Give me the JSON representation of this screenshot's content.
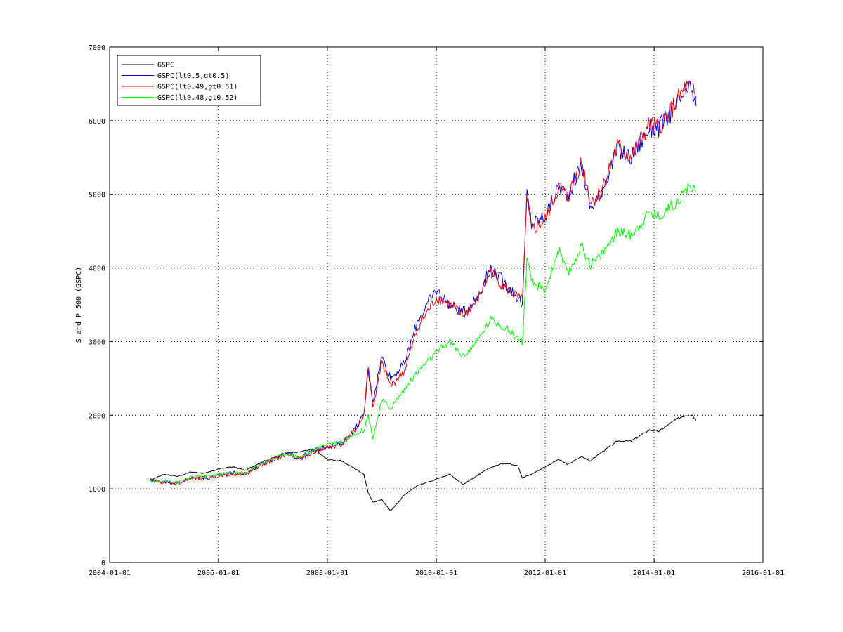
{
  "chart_data": {
    "type": "line",
    "title": "",
    "xlabel": "",
    "ylabel": "S and P 500 (GSPC)",
    "xlim": [
      "2004-01-01",
      "2016-01-01"
    ],
    "ylim": [
      0,
      7000
    ],
    "x_ticks": [
      "2004-01-01",
      "2006-01-01",
      "2008-01-01",
      "2010-01-01",
      "2012-01-01",
      "2014-01-01",
      "2016-01-01"
    ],
    "y_ticks": [
      0,
      1000,
      2000,
      3000,
      4000,
      5000,
      6000,
      7000
    ],
    "grid": true,
    "legend_position": "top-left",
    "series": [
      {
        "name": "GSPC",
        "color": "#000000",
        "points": [
          [
            "2004-10-01",
            1120
          ],
          [
            "2005-01-01",
            1200
          ],
          [
            "2005-04-01",
            1170
          ],
          [
            "2005-07-01",
            1230
          ],
          [
            "2005-10-01",
            1210
          ],
          [
            "2006-01-01",
            1270
          ],
          [
            "2006-04-01",
            1300
          ],
          [
            "2006-07-01",
            1250
          ],
          [
            "2006-10-01",
            1350
          ],
          [
            "2007-01-01",
            1420
          ],
          [
            "2007-04-01",
            1490
          ],
          [
            "2007-07-01",
            1500
          ],
          [
            "2007-10-01",
            1540
          ],
          [
            "2008-01-01",
            1400
          ],
          [
            "2008-04-01",
            1380
          ],
          [
            "2008-07-01",
            1280
          ],
          [
            "2008-09-01",
            1200
          ],
          [
            "2008-10-01",
            950
          ],
          [
            "2008-11-01",
            820
          ],
          [
            "2009-01-01",
            850
          ],
          [
            "2009-03-01",
            700
          ],
          [
            "2009-06-01",
            920
          ],
          [
            "2009-09-01",
            1050
          ],
          [
            "2010-01-01",
            1130
          ],
          [
            "2010-04-01",
            1200
          ],
          [
            "2010-07-01",
            1060
          ],
          [
            "2010-10-01",
            1180
          ],
          [
            "2011-01-01",
            1290
          ],
          [
            "2011-04-01",
            1350
          ],
          [
            "2011-07-01",
            1320
          ],
          [
            "2011-08-01",
            1150
          ],
          [
            "2011-10-01",
            1200
          ],
          [
            "2012-01-01",
            1300
          ],
          [
            "2012-04-01",
            1400
          ],
          [
            "2012-06-01",
            1330
          ],
          [
            "2012-09-01",
            1440
          ],
          [
            "2012-11-01",
            1380
          ],
          [
            "2013-01-01",
            1480
          ],
          [
            "2013-05-01",
            1650
          ],
          [
            "2013-08-01",
            1650
          ],
          [
            "2013-12-01",
            1800
          ],
          [
            "2014-02-01",
            1780
          ],
          [
            "2014-06-01",
            1950
          ],
          [
            "2014-08-01",
            2000
          ],
          [
            "2014-09-15",
            2000
          ],
          [
            "2014-10-10",
            1930
          ]
        ]
      },
      {
        "name": "GSPC(lt0.5,gt0.5)",
        "color": "#0000ff",
        "points": [
          [
            "2004-10-01",
            1120
          ],
          [
            "2005-01-01",
            1100
          ],
          [
            "2005-04-01",
            1080
          ],
          [
            "2005-07-01",
            1150
          ],
          [
            "2005-10-01",
            1140
          ],
          [
            "2006-01-01",
            1180
          ],
          [
            "2006-04-01",
            1220
          ],
          [
            "2006-07-01",
            1200
          ],
          [
            "2006-10-01",
            1320
          ],
          [
            "2007-01-01",
            1400
          ],
          [
            "2007-04-01",
            1480
          ],
          [
            "2007-07-01",
            1420
          ],
          [
            "2007-10-01",
            1520
          ],
          [
            "2008-01-01",
            1580
          ],
          [
            "2008-04-01",
            1620
          ],
          [
            "2008-07-01",
            1800
          ],
          [
            "2008-09-01",
            2000
          ],
          [
            "2008-10-01",
            2600
          ],
          [
            "2008-11-01",
            2200
          ],
          [
            "2009-01-01",
            2800
          ],
          [
            "2009-03-01",
            2500
          ],
          [
            "2009-06-01",
            2700
          ],
          [
            "2009-09-01",
            3300
          ],
          [
            "2010-01-01",
            3700
          ],
          [
            "2010-04-01",
            3500
          ],
          [
            "2010-07-01",
            3400
          ],
          [
            "2010-10-01",
            3600
          ],
          [
            "2011-01-01",
            4000
          ],
          [
            "2011-04-01",
            3800
          ],
          [
            "2011-07-01",
            3600
          ],
          [
            "2011-08-01",
            3500
          ],
          [
            "2011-09-01",
            5000
          ],
          [
            "2011-10-01",
            4600
          ],
          [
            "2012-01-01",
            4700
          ],
          [
            "2012-04-01",
            5100
          ],
          [
            "2012-06-01",
            5000
          ],
          [
            "2012-09-01",
            5400
          ],
          [
            "2012-11-01",
            4800
          ],
          [
            "2013-01-01",
            5000
          ],
          [
            "2013-05-01",
            5600
          ],
          [
            "2013-08-01",
            5500
          ],
          [
            "2013-12-01",
            5900
          ],
          [
            "2014-02-01",
            5900
          ],
          [
            "2014-06-01",
            6200
          ],
          [
            "2014-08-01",
            6400
          ],
          [
            "2014-09-15",
            6400
          ],
          [
            "2014-10-10",
            6200
          ]
        ]
      },
      {
        "name": "GSPC(lt0.49,gt0.51)",
        "color": "#ff0000",
        "points": [
          [
            "2004-10-01",
            1110
          ],
          [
            "2005-01-01",
            1090
          ],
          [
            "2005-04-01",
            1070
          ],
          [
            "2005-07-01",
            1140
          ],
          [
            "2005-10-01",
            1150
          ],
          [
            "2006-01-01",
            1170
          ],
          [
            "2006-04-01",
            1210
          ],
          [
            "2006-07-01",
            1190
          ],
          [
            "2006-10-01",
            1310
          ],
          [
            "2007-01-01",
            1390
          ],
          [
            "2007-04-01",
            1470
          ],
          [
            "2007-07-01",
            1410
          ],
          [
            "2007-10-01",
            1500
          ],
          [
            "2008-01-01",
            1560
          ],
          [
            "2008-04-01",
            1600
          ],
          [
            "2008-07-01",
            1780
          ],
          [
            "2008-09-01",
            1980
          ],
          [
            "2008-10-01",
            2700
          ],
          [
            "2008-11-01",
            2100
          ],
          [
            "2009-01-01",
            2700
          ],
          [
            "2009-03-01",
            2400
          ],
          [
            "2009-06-01",
            2600
          ],
          [
            "2009-09-01",
            3200
          ],
          [
            "2010-01-01",
            3600
          ],
          [
            "2010-04-01",
            3500
          ],
          [
            "2010-07-01",
            3350
          ],
          [
            "2010-10-01",
            3550
          ],
          [
            "2011-01-01",
            3950
          ],
          [
            "2011-04-01",
            3750
          ],
          [
            "2011-07-01",
            3600
          ],
          [
            "2011-08-01",
            3550
          ],
          [
            "2011-09-01",
            4900
          ],
          [
            "2011-10-01",
            4500
          ],
          [
            "2012-01-01",
            4650
          ],
          [
            "2012-04-01",
            5100
          ],
          [
            "2012-06-01",
            4950
          ],
          [
            "2012-09-01",
            5450
          ],
          [
            "2012-11-01",
            4900
          ],
          [
            "2013-01-01",
            5000
          ],
          [
            "2013-05-01",
            5650
          ],
          [
            "2013-08-01",
            5500
          ],
          [
            "2013-12-01",
            5950
          ],
          [
            "2014-02-01",
            5900
          ],
          [
            "2014-06-01",
            6250
          ],
          [
            "2014-08-01",
            6450
          ],
          [
            "2014-09-15",
            6400
          ],
          [
            "2014-10-10",
            6300
          ]
        ]
      },
      {
        "name": "GSPC(lt0.48,gt0.52)",
        "color": "#00ff00",
        "points": [
          [
            "2004-10-01",
            1100
          ],
          [
            "2005-01-01",
            1110
          ],
          [
            "2005-04-01",
            1090
          ],
          [
            "2005-07-01",
            1160
          ],
          [
            "2005-10-01",
            1170
          ],
          [
            "2006-01-01",
            1190
          ],
          [
            "2006-04-01",
            1230
          ],
          [
            "2006-07-01",
            1210
          ],
          [
            "2006-10-01",
            1330
          ],
          [
            "2007-01-01",
            1410
          ],
          [
            "2007-04-01",
            1480
          ],
          [
            "2007-07-01",
            1430
          ],
          [
            "2007-10-01",
            1520
          ],
          [
            "2008-01-01",
            1620
          ],
          [
            "2008-04-01",
            1630
          ],
          [
            "2008-07-01",
            1750
          ],
          [
            "2008-09-01",
            1800
          ],
          [
            "2008-10-01",
            2000
          ],
          [
            "2008-11-01",
            1700
          ],
          [
            "2009-01-01",
            2200
          ],
          [
            "2009-03-01",
            2100
          ],
          [
            "2009-06-01",
            2350
          ],
          [
            "2009-09-01",
            2600
          ],
          [
            "2010-01-01",
            2850
          ],
          [
            "2010-04-01",
            3000
          ],
          [
            "2010-07-01",
            2800
          ],
          [
            "2010-10-01",
            3000
          ],
          [
            "2011-01-01",
            3300
          ],
          [
            "2011-04-01",
            3200
          ],
          [
            "2011-07-01",
            3050
          ],
          [
            "2011-08-01",
            3000
          ],
          [
            "2011-09-01",
            4100
          ],
          [
            "2011-10-01",
            3800
          ],
          [
            "2012-01-01",
            3700
          ],
          [
            "2012-04-01",
            4250
          ],
          [
            "2012-06-01",
            3900
          ],
          [
            "2012-09-01",
            4300
          ],
          [
            "2012-11-01",
            4050
          ],
          [
            "2013-01-01",
            4150
          ],
          [
            "2013-05-01",
            4500
          ],
          [
            "2013-08-01",
            4450
          ],
          [
            "2013-12-01",
            4750
          ],
          [
            "2014-02-01",
            4700
          ],
          [
            "2014-06-01",
            4900
          ],
          [
            "2014-08-01",
            5050
          ],
          [
            "2014-09-15",
            5100
          ],
          [
            "2014-10-10",
            5050
          ]
        ]
      }
    ]
  }
}
